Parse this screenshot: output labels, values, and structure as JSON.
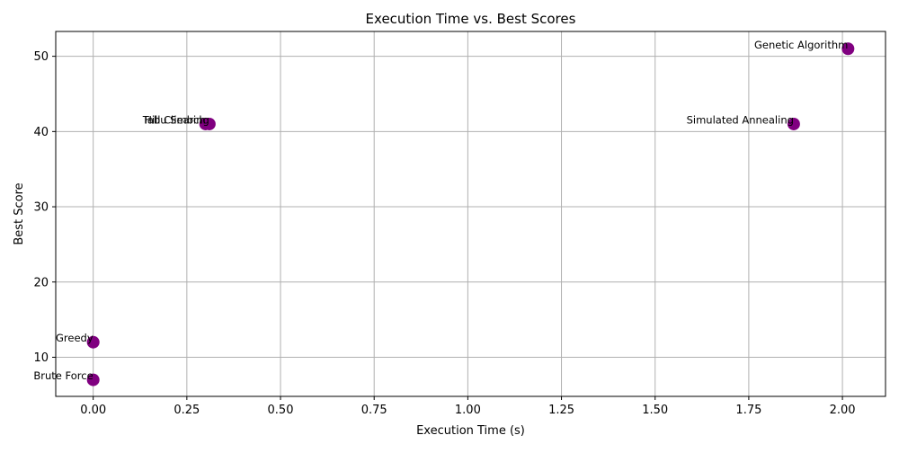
{
  "chart_data": {
    "type": "scatter",
    "title": "Execution Time vs. Best Scores",
    "xlabel": "Execution Time (s)",
    "ylabel": "Best Score",
    "xlim": [
      -0.1,
      2.115
    ],
    "ylim": [
      4.8,
      53.3
    ],
    "x_ticks": [
      0.0,
      0.25,
      0.5,
      0.75,
      1.0,
      1.25,
      1.5,
      1.75,
      2.0
    ],
    "x_tick_labels": [
      "0.00",
      "0.25",
      "0.50",
      "0.75",
      "1.00",
      "1.25",
      "1.50",
      "1.75",
      "2.00"
    ],
    "y_ticks": [
      10,
      20,
      30,
      40,
      50
    ],
    "y_tick_labels": [
      "10",
      "20",
      "30",
      "40",
      "50"
    ],
    "grid": true,
    "marker_color": "#800080",
    "points": [
      {
        "label": "Brute Force",
        "x": 0.0,
        "y": 7
      },
      {
        "label": "Greedy",
        "x": 0.0,
        "y": 12
      },
      {
        "label": "Hill Climbing",
        "x": 0.31,
        "y": 41
      },
      {
        "label": "Tabu Search",
        "x": 0.3,
        "y": 41
      },
      {
        "label": "Simulated Annealing",
        "x": 1.87,
        "y": 41
      },
      {
        "label": "Genetic Algorithm",
        "x": 2.015,
        "y": 51
      }
    ]
  }
}
